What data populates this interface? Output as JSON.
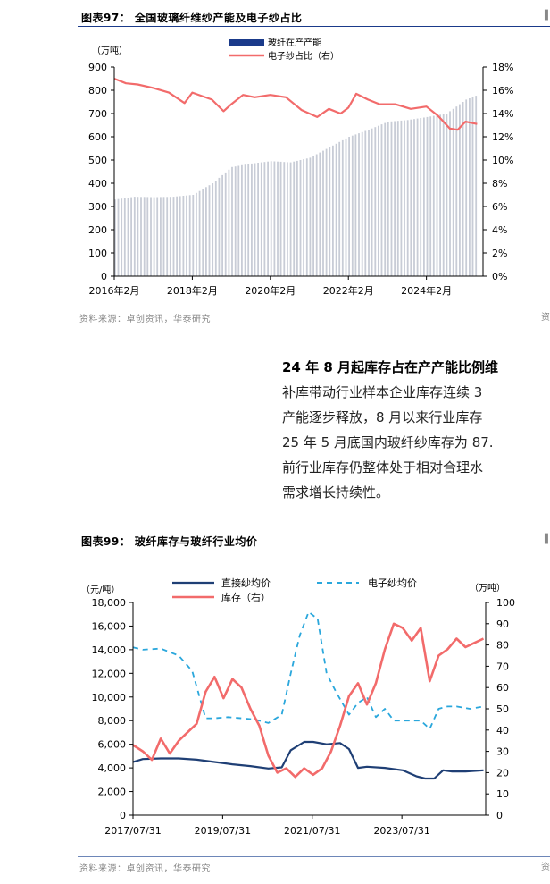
{
  "figure97": {
    "title": "图表97： 全国玻璃纤维纱产能及电子纱占比",
    "source": "资料来源：卓创资讯，华泰研究",
    "edge_mark": "资"
  },
  "figure99": {
    "title": "图表99： 玻纤库存与玻纤行业均价",
    "source": "资料来源：卓创资讯，华泰研究",
    "edge_mark": "资"
  },
  "paragraph": {
    "title": "24 年 8 月起库存占在产产能比例维",
    "lines": [
      "补库带动行业样本企业库存连续 3",
      "产能逐步释放，8 月以来行业库存",
      "25 年 5 月底国内玻纤纱库存为 87.",
      "前行业库存仍整体处于相对合理水",
      "需求增长持续性。"
    ]
  },
  "colors": {
    "capacity_bar": "#c8ccd6",
    "legend_bar": "#1a3a8a",
    "electronic_share": "#f26b6b",
    "direct_price": "#1f3f75",
    "electronic_price": "#2aa7dc",
    "inventory": "#f26b6b"
  },
  "chart_data": [
    {
      "type": "bar",
      "unit_left": "（万吨）",
      "legend": [
        "玻纤在产产能",
        "电子纱占比（右）"
      ],
      "xlabels": [
        "2016年2月",
        "2018年2月",
        "2020年2月",
        "2022年2月",
        "2024年2月"
      ],
      "y_left": {
        "range": [
          0,
          900
        ],
        "ticks": [
          "0",
          "100",
          "200",
          "300",
          "400",
          "500",
          "600",
          "700",
          "800",
          "900"
        ]
      },
      "y_right": {
        "range": [
          0,
          18
        ],
        "ticks": [
          "0%",
          "2%",
          "4%",
          "6%",
          "8%",
          "10%",
          "12%",
          "14%",
          "16%",
          "18%"
        ]
      },
      "series": [
        {
          "name": "玻纤在产产能",
          "axis": "left",
          "kind": "bar",
          "x": [
            2016.0,
            2016.5,
            2017.0,
            2017.5,
            2018.0,
            2018.5,
            2019.0,
            2019.5,
            2020.0,
            2020.5,
            2021.0,
            2021.5,
            2022.0,
            2022.5,
            2023.0,
            2023.5,
            2024.0,
            2024.5,
            2025.0,
            2025.3
          ],
          "values": [
            330,
            342,
            340,
            342,
            350,
            400,
            470,
            485,
            495,
            490,
            510,
            555,
            600,
            630,
            665,
            672,
            685,
            700,
            760,
            780
          ]
        },
        {
          "name": "电子纱占比（右）",
          "axis": "right",
          "kind": "line",
          "x": [
            2016.0,
            2016.3,
            2016.6,
            2017.0,
            2017.4,
            2017.8,
            2018.0,
            2018.5,
            2018.8,
            2019.0,
            2019.3,
            2019.6,
            2020.0,
            2020.4,
            2020.8,
            2021.2,
            2021.5,
            2021.8,
            2022.0,
            2022.2,
            2022.5,
            2022.8,
            2023.2,
            2023.6,
            2024.0,
            2024.3,
            2024.6,
            2024.8,
            2025.0,
            2025.3
          ],
          "values": [
            17.0,
            16.6,
            16.5,
            16.2,
            15.8,
            14.9,
            15.8,
            15.2,
            14.2,
            14.8,
            15.6,
            15.4,
            15.6,
            15.4,
            14.3,
            13.7,
            14.4,
            14.0,
            14.5,
            15.7,
            15.2,
            14.8,
            14.8,
            14.4,
            14.6,
            13.8,
            12.7,
            12.6,
            13.3,
            13.1
          ]
        }
      ]
    },
    {
      "type": "line",
      "unit_left": "（元/吨）",
      "unit_right": "（万吨）",
      "legend": [
        "直接纱均价",
        "电子纱均价",
        "库存（右）"
      ],
      "xlabels": [
        "2017/07/31",
        "2019/07/31",
        "2021/07/31",
        "2023/07/31"
      ],
      "y_left": {
        "range": [
          0,
          18000
        ],
        "ticks": [
          "0",
          "2,000",
          "4,000",
          "6,000",
          "8,000",
          "10,000",
          "12,000",
          "14,000",
          "16,000",
          "18,000"
        ]
      },
      "y_right": {
        "range": [
          0,
          100
        ],
        "ticks": [
          "0",
          "10",
          "20",
          "30",
          "40",
          "50",
          "60",
          "70",
          "80",
          "90",
          "100"
        ]
      },
      "series": [
        {
          "name": "直接纱均价",
          "axis": "left",
          "x": [
            2017.58,
            2017.8,
            2018.2,
            2018.6,
            2019.0,
            2019.4,
            2019.8,
            2020.2,
            2020.6,
            2020.9,
            2021.1,
            2021.4,
            2021.6,
            2021.9,
            2022.2,
            2022.4,
            2022.6,
            2022.8,
            2023.2,
            2023.6,
            2023.9,
            2024.1,
            2024.3,
            2024.5,
            2024.7,
            2025.0,
            2025.4
          ],
          "values": [
            4500,
            4750,
            4800,
            4800,
            4700,
            4500,
            4300,
            4150,
            3950,
            4050,
            5500,
            6200,
            6200,
            6000,
            6100,
            5600,
            4000,
            4100,
            4000,
            3800,
            3300,
            3100,
            3100,
            3800,
            3700,
            3700,
            3800
          ]
        },
        {
          "name": "电子纱均价",
          "axis": "left",
          "x": [
            2017.58,
            2017.8,
            2018.2,
            2018.6,
            2018.9,
            2019.2,
            2019.4,
            2019.7,
            2020.0,
            2020.3,
            2020.6,
            2020.9,
            2021.1,
            2021.3,
            2021.5,
            2021.7,
            2021.9,
            2022.1,
            2022.4,
            2022.6,
            2022.8,
            2023.0,
            2023.2,
            2023.4,
            2023.7,
            2024.0,
            2024.2,
            2024.4,
            2024.6,
            2024.8,
            2025.1,
            2025.4
          ],
          "values": [
            14200,
            14000,
            14100,
            13500,
            12200,
            8200,
            8200,
            8300,
            8200,
            8100,
            7800,
            8500,
            12000,
            15200,
            17200,
            16600,
            12000,
            10500,
            8500,
            9500,
            10000,
            8300,
            9000,
            8000,
            8000,
            8000,
            7300,
            9000,
            9200,
            9200,
            9000,
            9200
          ]
        },
        {
          "name": "库存（右）",
          "axis": "right",
          "x": [
            2017.58,
            2017.8,
            2018.0,
            2018.2,
            2018.4,
            2018.6,
            2018.8,
            2019.0,
            2019.2,
            2019.4,
            2019.6,
            2019.8,
            2020.0,
            2020.2,
            2020.4,
            2020.6,
            2020.8,
            2021.0,
            2021.2,
            2021.4,
            2021.6,
            2021.8,
            2022.0,
            2022.2,
            2022.4,
            2022.6,
            2022.8,
            2023.0,
            2023.2,
            2023.4,
            2023.6,
            2023.8,
            2024.0,
            2024.2,
            2024.4,
            2024.6,
            2024.8,
            2025.0,
            2025.2,
            2025.4
          ],
          "values": [
            33,
            30,
            26,
            36,
            29,
            35,
            39,
            43,
            58,
            65,
            55,
            64,
            60,
            50,
            42,
            28,
            20,
            22,
            18,
            22,
            19,
            22,
            30,
            42,
            56,
            62,
            52,
            62,
            78,
            90,
            88,
            82,
            88,
            63,
            75,
            78,
            83,
            79,
            81,
            83
          ]
        }
      ]
    }
  ]
}
